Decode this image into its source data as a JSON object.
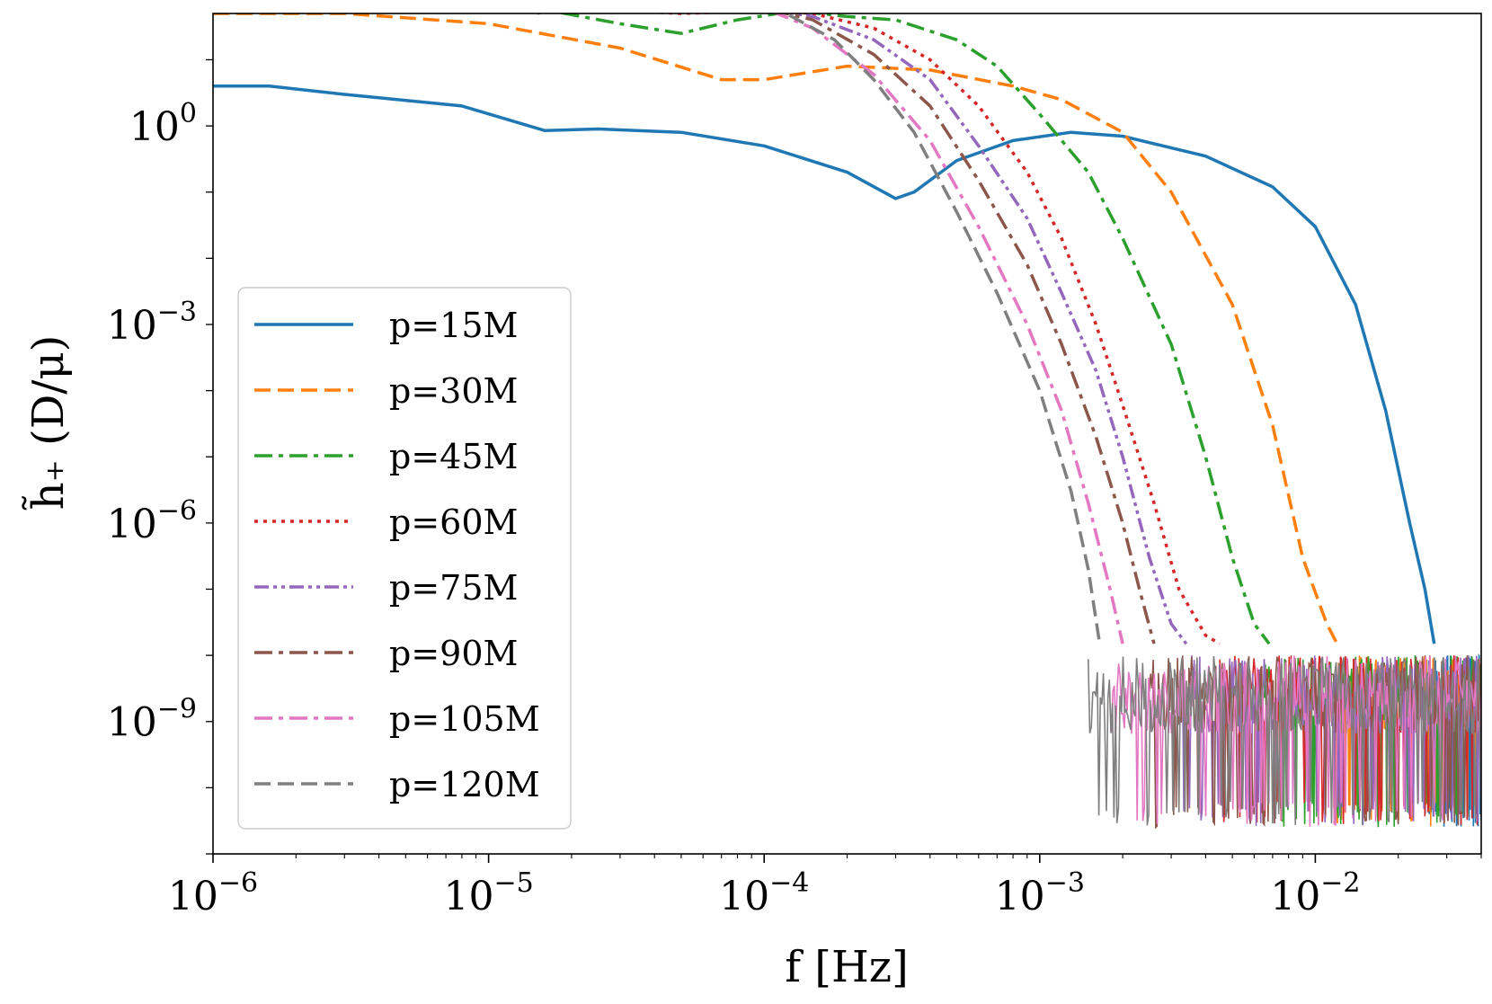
{
  "chart_data": {
    "type": "line",
    "title": "",
    "xlabel": "f [Hz]",
    "ylabel": "h̃₊ (D/μ)",
    "xscale": "log",
    "yscale": "log",
    "xlim": [
      1e-06,
      0.04
    ],
    "ylim": [
      1e-11,
      50
    ],
    "xticks": [
      {
        "base": "10",
        "exp": "−6",
        "value": 1e-06
      },
      {
        "base": "10",
        "exp": "−5",
        "value": 1e-05
      },
      {
        "base": "10",
        "exp": "−4",
        "value": 0.0001
      },
      {
        "base": "10",
        "exp": "−3",
        "value": 0.001
      },
      {
        "base": "10",
        "exp": "−2",
        "value": 0.01
      }
    ],
    "yticks": [
      {
        "base": "10",
        "exp": "0",
        "value": 1
      },
      {
        "base": "10",
        "exp": "−3",
        "value": 0.001
      },
      {
        "base": "10",
        "exp": "−6",
        "value": 1e-06
      },
      {
        "base": "10",
        "exp": "−9",
        "value": 1e-09
      }
    ],
    "grid": false,
    "legend_position": "lower-left",
    "noise_floor": 1e-08,
    "series": [
      {
        "name": "p=15M",
        "color": "#1f77b4",
        "style": "solid",
        "cutoff": 0.025,
        "points": [
          [
            1e-06,
            4
          ],
          [
            1.6e-06,
            4
          ],
          [
            3e-06,
            3
          ],
          [
            8e-06,
            2
          ],
          [
            1.6e-05,
            0.85
          ],
          [
            2.5e-05,
            0.9
          ],
          [
            5e-05,
            0.8
          ],
          [
            0.0001,
            0.5
          ],
          [
            0.0002,
            0.2
          ],
          [
            0.0003,
            0.08
          ],
          [
            0.00035,
            0.1
          ],
          [
            0.0005,
            0.3
          ],
          [
            0.0008,
            0.6
          ],
          [
            0.0013,
            0.8
          ],
          [
            0.002,
            0.7
          ],
          [
            0.004,
            0.35
          ],
          [
            0.007,
            0.12
          ],
          [
            0.01,
            0.03
          ],
          [
            0.014,
            0.002
          ],
          [
            0.018,
            5e-05
          ],
          [
            0.022,
            1e-06
          ],
          [
            0.025,
            1e-07
          ],
          [
            0.027,
            1.5e-08
          ]
        ]
      },
      {
        "name": "p=30M",
        "color": "#ff7f0e",
        "style": "dash",
        "cutoff": 0.011,
        "points": [
          [
            1e-06,
            50
          ],
          [
            3e-06,
            50
          ],
          [
            1e-05,
            35
          ],
          [
            3e-05,
            15
          ],
          [
            7e-05,
            5
          ],
          [
            0.0001,
            5
          ],
          [
            0.0002,
            8
          ],
          [
            0.0004,
            7
          ],
          [
            0.0008,
            4
          ],
          [
            0.0012,
            2.5
          ],
          [
            0.002,
            0.8
          ],
          [
            0.003,
            0.1
          ],
          [
            0.005,
            0.002
          ],
          [
            0.007,
            3e-05
          ],
          [
            0.009,
            3e-07
          ],
          [
            0.011,
            3e-08
          ],
          [
            0.012,
            1.5e-08
          ]
        ]
      },
      {
        "name": "p=45M",
        "color": "#2ca02c",
        "style": "dashdot",
        "cutoff": 0.0065,
        "points": [
          [
            1e-06,
            150
          ],
          [
            2e-06,
            150
          ],
          [
            5e-06,
            120
          ],
          [
            1.5e-05,
            60
          ],
          [
            3e-05,
            35
          ],
          [
            5e-05,
            25
          ],
          [
            8e-05,
            40
          ],
          [
            0.00013,
            55
          ],
          [
            0.0002,
            45
          ],
          [
            0.0003,
            40
          ],
          [
            0.0005,
            20
          ],
          [
            0.0007,
            8
          ],
          [
            0.001,
            1.5
          ],
          [
            0.0015,
            0.2
          ],
          [
            0.002,
            0.02
          ],
          [
            0.003,
            0.0005
          ],
          [
            0.004,
            1e-05
          ],
          [
            0.005,
            3e-07
          ],
          [
            0.006,
            3e-08
          ],
          [
            0.0068,
            1.5e-08
          ]
        ]
      },
      {
        "name": "p=60M",
        "color": "#d62728",
        "style": "dot",
        "cutoff": 0.0045,
        "points": [
          [
            1e-06,
            200
          ],
          [
            2e-06,
            200
          ],
          [
            5e-06,
            150
          ],
          [
            1.2e-05,
            90
          ],
          [
            2e-05,
            60
          ],
          [
            5e-05,
            50
          ],
          [
            0.0001,
            55
          ],
          [
            0.00015,
            50
          ],
          [
            0.00025,
            30
          ],
          [
            0.0004,
            10
          ],
          [
            0.0006,
            2
          ],
          [
            0.0009,
            0.2
          ],
          [
            0.0012,
            0.02
          ],
          [
            0.0016,
            0.001
          ],
          [
            0.002,
            6e-05
          ],
          [
            0.0026,
            2e-06
          ],
          [
            0.0032,
            1e-07
          ],
          [
            0.004,
            2e-08
          ],
          [
            0.0045,
            1.5e-08
          ]
        ]
      },
      {
        "name": "p=75M",
        "color": "#9467bd",
        "style": "dashdotdot",
        "cutoff": 0.0033,
        "points": [
          [
            1e-06,
            200
          ],
          [
            2e-06,
            200
          ],
          [
            5e-06,
            160
          ],
          [
            1.2e-05,
            100
          ],
          [
            2e-05,
            70
          ],
          [
            5e-05,
            60
          ],
          [
            0.0001,
            60
          ],
          [
            0.00015,
            45
          ],
          [
            0.00025,
            20
          ],
          [
            0.0004,
            5
          ],
          [
            0.0006,
            0.5
          ],
          [
            0.0009,
            0.04
          ],
          [
            0.0012,
            0.003
          ],
          [
            0.0016,
            0.0002
          ],
          [
            0.002,
            1e-05
          ],
          [
            0.0025,
            3e-07
          ],
          [
            0.003,
            3e-08
          ],
          [
            0.0034,
            1.5e-08
          ]
        ]
      },
      {
        "name": "p=90M",
        "color": "#8c564b",
        "style": "dashdot",
        "cutoff": 0.0025,
        "points": [
          [
            1e-06,
            200
          ],
          [
            2e-06,
            200
          ],
          [
            5e-06,
            170
          ],
          [
            1.2e-05,
            100
          ],
          [
            2e-05,
            70
          ],
          [
            5e-05,
            65
          ],
          [
            0.0001,
            60
          ],
          [
            0.00015,
            40
          ],
          [
            0.00025,
            12
          ],
          [
            0.0004,
            2
          ],
          [
            0.0006,
            0.15
          ],
          [
            0.0009,
            0.008
          ],
          [
            0.0012,
            0.0005
          ],
          [
            0.0016,
            2e-05
          ],
          [
            0.002,
            1e-06
          ],
          [
            0.0023,
            1e-07
          ],
          [
            0.0026,
            1.5e-08
          ]
        ]
      },
      {
        "name": "p=105M",
        "color": "#e377c2",
        "style": "dashdot",
        "cutoff": 0.0018,
        "points": [
          [
            1e-06,
            200
          ],
          [
            2e-06,
            200
          ],
          [
            5e-06,
            170
          ],
          [
            1.2e-05,
            110
          ],
          [
            2e-05,
            80
          ],
          [
            5e-05,
            70
          ],
          [
            0.0001,
            60
          ],
          [
            0.00015,
            30
          ],
          [
            0.00025,
            6
          ],
          [
            0.0004,
            0.6
          ],
          [
            0.0006,
            0.03
          ],
          [
            0.0009,
            0.001
          ],
          [
            0.0012,
            5e-05
          ],
          [
            0.0015,
            2e-06
          ],
          [
            0.0018,
            1e-07
          ],
          [
            0.002,
            1.5e-08
          ]
        ]
      },
      {
        "name": "p=120M",
        "color": "#7f7f7f",
        "style": "dash",
        "cutoff": 0.0015,
        "points": [
          [
            1e-06,
            200
          ],
          [
            2e-06,
            180
          ],
          [
            4e-06,
            120
          ],
          [
            8e-06,
            80
          ],
          [
            1.5e-05,
            50
          ],
          [
            2.5e-05,
            90
          ],
          [
            5e-05,
            100
          ],
          [
            8e-05,
            80
          ],
          [
            0.00012,
            50
          ],
          [
            0.00018,
            20
          ],
          [
            0.00025,
            5
          ],
          [
            0.00035,
            0.8
          ],
          [
            0.0005,
            0.05
          ],
          [
            0.0007,
            0.003
          ],
          [
            0.001,
            0.0001
          ],
          [
            0.0013,
            3e-06
          ],
          [
            0.0015,
            2e-07
          ],
          [
            0.00165,
            1.5e-08
          ]
        ]
      }
    ]
  }
}
